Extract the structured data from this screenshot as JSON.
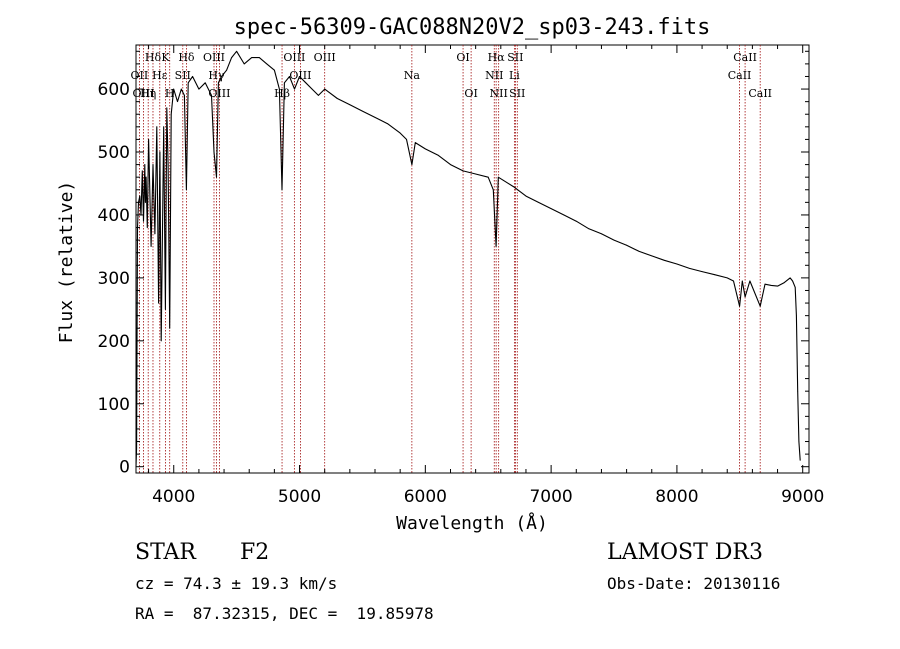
{
  "chart_data": {
    "type": "line",
    "title": "spec-56309-GAC088N20V2_sp03-243.fits",
    "xlabel": "Wavelength (Å)",
    "ylabel": "Flux (relative)",
    "xlim": [
      3700,
      9050
    ],
    "ylim": [
      -10,
      670
    ],
    "x_ticks": [
      4000,
      5000,
      6000,
      7000,
      8000,
      9000
    ],
    "y_ticks": [
      0,
      100,
      200,
      300,
      400,
      500,
      600
    ],
    "series": [
      {
        "name": "spectrum",
        "x": [
          3700,
          3705,
          3712,
          3720,
          3730,
          3740,
          3750,
          3760,
          3770,
          3775,
          3780,
          3790,
          3800,
          3820,
          3835,
          3850,
          3865,
          3880,
          3890,
          3900,
          3920,
          3934,
          3945,
          3955,
          3968,
          3980,
          4000,
          4030,
          4060,
          4085,
          4101,
          4115,
          4150,
          4200,
          4250,
          4300,
          4320,
          4340,
          4355,
          4380,
          4420,
          4460,
          4500,
          4560,
          4620,
          4680,
          4740,
          4800,
          4840,
          4861,
          4880,
          4920,
          4960,
          5000,
          5050,
          5100,
          5150,
          5200,
          5300,
          5400,
          5500,
          5600,
          5700,
          5800,
          5850,
          5893,
          5920,
          6000,
          6100,
          6200,
          6300,
          6400,
          6500,
          6540,
          6563,
          6580,
          6620,
          6700,
          6800,
          6900,
          7000,
          7100,
          7200,
          7300,
          7400,
          7500,
          7600,
          7700,
          7800,
          7900,
          8000,
          8100,
          8200,
          8300,
          8400,
          8450,
          8498,
          8520,
          8542,
          8580,
          8662,
          8700,
          8750,
          8800,
          8850,
          8900,
          8920,
          8940,
          8950,
          8960,
          8970,
          8980
        ],
        "values": [
          0,
          30,
          380,
          420,
          430,
          400,
          470,
          390,
          480,
          420,
          460,
          380,
          520,
          350,
          480,
          370,
          540,
          260,
          500,
          200,
          540,
          250,
          570,
          480,
          220,
          560,
          600,
          580,
          600,
          590,
          440,
          610,
          620,
          600,
          610,
          590,
          500,
          460,
          610,
          620,
          630,
          650,
          660,
          640,
          650,
          650,
          640,
          630,
          600,
          440,
          610,
          620,
          600,
          620,
          610,
          600,
          590,
          600,
          585,
          575,
          565,
          555,
          545,
          530,
          520,
          480,
          515,
          505,
          495,
          480,
          470,
          465,
          460,
          440,
          350,
          460,
          455,
          445,
          430,
          420,
          410,
          400,
          390,
          378,
          370,
          360,
          352,
          342,
          335,
          328,
          322,
          315,
          310,
          305,
          300,
          295,
          255,
          295,
          270,
          295,
          255,
          290,
          288,
          287,
          292,
          300,
          295,
          285,
          240,
          120,
          40,
          10
        ]
      }
    ],
    "lines": [
      {
        "label": "Hδ",
        "x": 3835,
        "row": 0
      },
      {
        "label": "OII",
        "x": 3727,
        "row": 1
      },
      {
        "label": "OIII",
        "x": 3760,
        "row": 2
      },
      {
        "label": "Hη",
        "x": 3797,
        "row": 2
      },
      {
        "label": "Hε",
        "x": 3889,
        "row": 1
      },
      {
        "label": "K",
        "x": 3934,
        "row": 0
      },
      {
        "label": "H",
        "x": 3968,
        "row": 2
      },
      {
        "label": "SII",
        "x": 4072,
        "row": 1
      },
      {
        "label": "Hδ",
        "x": 4101,
        "row": 0
      },
      {
        "label": "OIII",
        "x": 4320,
        "row": 0
      },
      {
        "label": "Hγ",
        "x": 4340,
        "row": 1
      },
      {
        "label": "OIII",
        "x": 4363,
        "row": 2
      },
      {
        "label": "Hβ",
        "x": 4861,
        "row": 2
      },
      {
        "label": "OIII",
        "x": 4959,
        "row": 0
      },
      {
        "label": "OIII",
        "x": 5007,
        "row": 1
      },
      {
        "label": "OIII",
        "x": 5200,
        "row": 0
      },
      {
        "label": "Na",
        "x": 5893,
        "row": 1
      },
      {
        "label": "OI",
        "x": 6300,
        "row": 0
      },
      {
        "label": "OI",
        "x": 6364,
        "row": 2
      },
      {
        "label": "NII",
        "x": 6548,
        "row": 1
      },
      {
        "label": "Hα",
        "x": 6563,
        "row": 0
      },
      {
        "label": "NII",
        "x": 6583,
        "row": 2
      },
      {
        "label": "SII",
        "x": 6716,
        "row": 0
      },
      {
        "label": "Li",
        "x": 6708,
        "row": 1
      },
      {
        "label": "SII",
        "x": 6731,
        "row": 2
      },
      {
        "label": "CaII",
        "x": 8498,
        "row": 1
      },
      {
        "label": "CaII",
        "x": 8542,
        "row": 0
      },
      {
        "label": "CaII",
        "x": 8662,
        "row": 2
      }
    ]
  },
  "info": {
    "object_type": "STAR",
    "subclass": "F2",
    "survey": "LAMOST DR3",
    "cz": "cz = 74.3 ± 19.3 km/s",
    "obs_date": "Obs-Date: 20130116",
    "coords": "RA =  87.32315, DEC =  19.85978"
  }
}
